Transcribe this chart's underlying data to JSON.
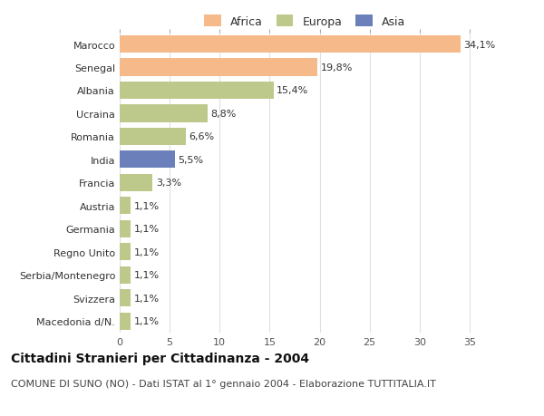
{
  "countries": [
    "Marocco",
    "Senegal",
    "Albania",
    "Ucraina",
    "Romania",
    "India",
    "Francia",
    "Austria",
    "Germania",
    "Regno Unito",
    "Serbia/Montenegro",
    "Svizzera",
    "Macedonia d/N."
  ],
  "values": [
    34.1,
    19.8,
    15.4,
    8.8,
    6.6,
    5.5,
    3.3,
    1.1,
    1.1,
    1.1,
    1.1,
    1.1,
    1.1
  ],
  "labels": [
    "34,1%",
    "19,8%",
    "15,4%",
    "8,8%",
    "6,6%",
    "5,5%",
    "3,3%",
    "1,1%",
    "1,1%",
    "1,1%",
    "1,1%",
    "1,1%",
    "1,1%"
  ],
  "colors": [
    "#F5B98A",
    "#F5B98A",
    "#BDC98A",
    "#BDC98A",
    "#BDC98A",
    "#6B80BB",
    "#BDC98A",
    "#BDC98A",
    "#BDC98A",
    "#BDC98A",
    "#BDC98A",
    "#BDC98A",
    "#BDC98A"
  ],
  "legend_labels": [
    "Africa",
    "Europa",
    "Asia"
  ],
  "legend_colors": [
    "#F5B98A",
    "#BDC98A",
    "#6B80BB"
  ],
  "title": "Cittadini Stranieri per Cittadinanza - 2004",
  "subtitle": "COMUNE DI SUNO (NO) - Dati ISTAT al 1° gennaio 2004 - Elaborazione TUTTITALIA.IT",
  "xlim": [
    0,
    37
  ],
  "xticks": [
    0,
    5,
    10,
    15,
    20,
    25,
    30,
    35
  ],
  "background_color": "#ffffff",
  "plot_bg_color": "#ffffff",
  "grid_color": "#e0e0e0",
  "title_fontsize": 10,
  "subtitle_fontsize": 8,
  "label_fontsize": 8,
  "tick_fontsize": 8
}
